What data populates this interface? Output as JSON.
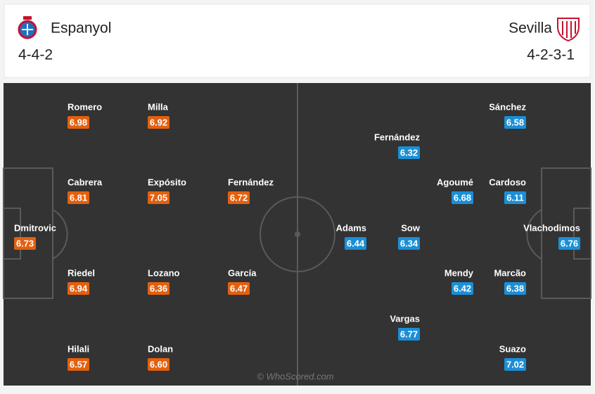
{
  "header": {
    "home": {
      "name": "Espanyol",
      "formation": "4-4-2"
    },
    "away": {
      "name": "Sevilla",
      "formation": "4-2-3-1"
    }
  },
  "home_players": [
    {
      "name": "Romero",
      "rating": 6.98
    },
    {
      "name": "Milla",
      "rating": 6.92
    },
    {
      "name": "Cabrera",
      "rating": 6.81
    },
    {
      "name": "Expósito",
      "rating": 7.05
    },
    {
      "name": "Fernández",
      "rating": 6.72
    },
    {
      "name": "Dmitrovic",
      "rating": 6.73
    },
    {
      "name": "Riedel",
      "rating": 6.94
    },
    {
      "name": "Lozano",
      "rating": 6.36
    },
    {
      "name": "García",
      "rating": 6.47
    },
    {
      "name": "Hilali",
      "rating": 6.57
    },
    {
      "name": "Dolan",
      "rating": {
        "value": 6.6,
        "label": "6.60"
      }
    }
  ],
  "away_players": [
    {
      "name": "Sánchez",
      "rating": 6.58
    },
    {
      "name": "Fernández",
      "rating": 6.32
    },
    {
      "name": "Agoumé",
      "rating": 6.68
    },
    {
      "name": "Cardoso",
      "rating": 6.11
    },
    {
      "name": "Adams",
      "rating": 6.44
    },
    {
      "name": "Sow",
      "rating": 6.34
    },
    {
      "name": "Vlachodimos",
      "rating": 6.76
    },
    {
      "name": "Mendy",
      "rating": 6.42
    },
    {
      "name": "Marcão",
      "rating": 6.38
    },
    {
      "name": "Vargas",
      "rating": 6.77
    },
    {
      "name": "Suazo",
      "rating": 7.02
    }
  ],
  "watermark": "© WhoScored.com"
}
